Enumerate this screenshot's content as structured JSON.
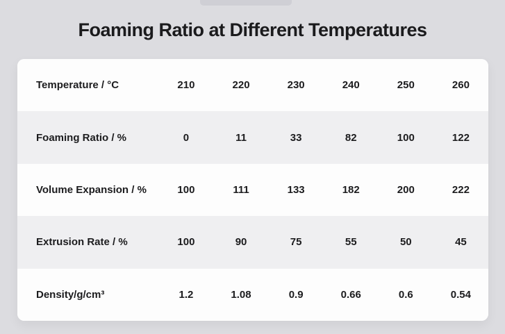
{
  "title": "Foaming Ratio at Different Temperatures",
  "colors": {
    "page_background": "#dcdce0",
    "card_background": "#fdfdfd",
    "stripe_background": "#efeff1",
    "text": "#1c1c1e",
    "top_notch": "#cfcfd5"
  },
  "table": {
    "rows": [
      {
        "label": "Temperature / °C",
        "values": [
          "210",
          "220",
          "230",
          "240",
          "250",
          "260"
        ]
      },
      {
        "label": "Foaming Ratio / %",
        "values": [
          "0",
          "11",
          "33",
          "82",
          "100",
          "122"
        ]
      },
      {
        "label": "Volume Expansion / %",
        "values": [
          "100",
          "111",
          "133",
          "182",
          "200",
          "222"
        ]
      },
      {
        "label": "Extrusion Rate / %",
        "values": [
          "100",
          "90",
          "75",
          "55",
          "50",
          "45"
        ]
      },
      {
        "label": "Density/g/cm³",
        "values": [
          "1.2",
          "1.08",
          "0.9",
          "0.66",
          "0.6",
          "0.54"
        ]
      }
    ]
  },
  "chart_data": {
    "type": "table",
    "title": "Foaming Ratio at Different Temperatures",
    "categories": [
      210,
      220,
      230,
      240,
      250,
      260
    ],
    "categories_label": "Temperature / °C",
    "series": [
      {
        "name": "Foaming Ratio / %",
        "values": [
          0,
          11,
          33,
          82,
          100,
          122
        ]
      },
      {
        "name": "Volume Expansion / %",
        "values": [
          100,
          111,
          133,
          182,
          200,
          222
        ]
      },
      {
        "name": "Extrusion Rate / %",
        "values": [
          100,
          90,
          75,
          55,
          50,
          45
        ]
      },
      {
        "name": "Density/g/cm³",
        "values": [
          1.2,
          1.08,
          0.9,
          0.66,
          0.6,
          0.54
        ]
      }
    ],
    "layout": "rows-as-series, first column contains row labels, alternating row stripes"
  }
}
